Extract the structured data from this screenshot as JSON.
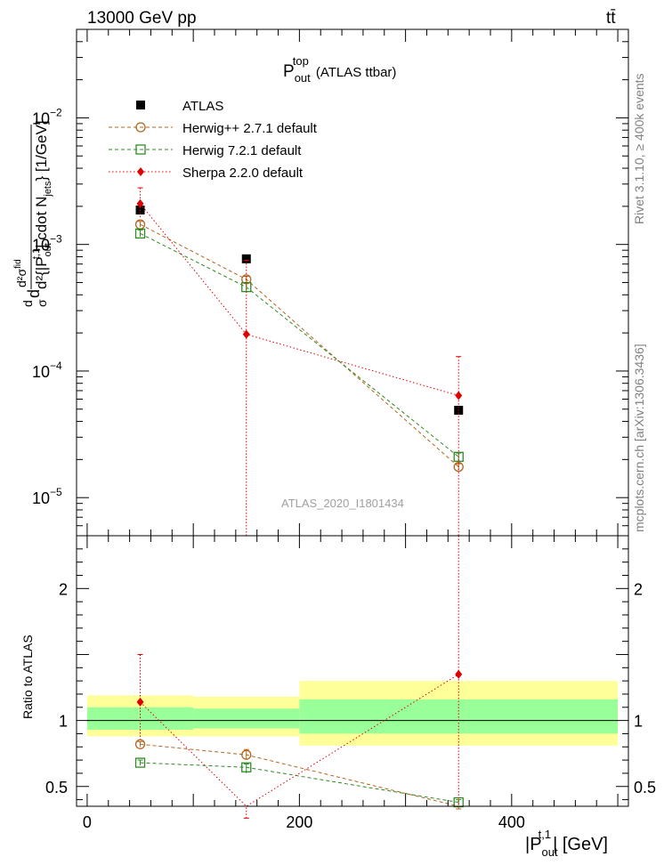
{
  "header": {
    "left": "13000 GeV pp",
    "right": "tt̄"
  },
  "side_labels": {
    "rivet": "Rivet 3.1.10, ≥ 400k events",
    "mcplots": "mcplots.cern.ch [arXiv:1306.3436]"
  },
  "plot_title": {
    "main": "P",
    "sup": "top",
    "sub": "out",
    "suffix": "(ATLAS ttbar)"
  },
  "watermark": "ATLAS_2020_I1801434",
  "ylabel_top": {
    "frac_num": "d",
    "frac_den": "σ",
    "rest": "d",
    "big_num": "d²σ",
    "big_num_sup": "fid",
    "bottom_main": "d²{|P",
    "bottom_sup": "t,1",
    "bottom_sub": "out",
    "bottom_rest": "| cdot N",
    "bottom_sub2": "jets",
    "bottom_close": "} [1/GeV]"
  },
  "ylabel_bottom": "Ratio to ATLAS",
  "xlabel": {
    "main": "|P",
    "sup": "t,1",
    "sub": "out",
    "rest": "| [GeV]"
  },
  "colors": {
    "atlas": "#000000",
    "herwigpp": "#b5651d",
    "herwig7": "#2e8b22",
    "sherpa": "#e00000",
    "band_inner": "#99ff99",
    "band_outer": "#ffff99"
  },
  "chart_data": [
    {
      "type": "scatter",
      "panel": "main",
      "log_y": true,
      "xlim": [
        -10,
        510
      ],
      "ylim": [
        5e-06,
        0.05
      ],
      "yticks": [
        {
          "value": 0.01,
          "base": "10",
          "exp": "−2"
        },
        {
          "value": 0.001,
          "base": "10",
          "exp": "−3"
        },
        {
          "value": 0.0001,
          "base": "10",
          "exp": "−4"
        },
        {
          "value": 1e-05,
          "base": "10",
          "exp": "−5"
        }
      ],
      "x": [
        50,
        150,
        350
      ],
      "x_bins": [
        [
          0,
          100
        ],
        [
          100,
          200
        ],
        [
          200,
          500
        ]
      ],
      "series": [
        {
          "name": "ATLAS",
          "key": "atlas",
          "marker": "square",
          "values": [
            0.00187,
            0.00077,
            4.9e-05
          ]
        },
        {
          "name": "Herwig++ 2.7.1 default",
          "key": "herwigpp",
          "marker": "circle",
          "values": [
            0.00144,
            0.00053,
            1.75e-05
          ],
          "err_hi": [
            0.00152,
            0.00056,
            1.85e-05
          ],
          "err_lo": [
            0.00137,
            0.0005,
            1.65e-05
          ]
        },
        {
          "name": "Herwig 7.2.1 default",
          "key": "herwig7",
          "marker": "open-square",
          "values": [
            0.00122,
            0.00046,
            2.1e-05
          ],
          "err_hi": [
            0.0013,
            0.0005,
            2.25e-05
          ],
          "err_lo": [
            0.00115,
            0.00042,
            1.95e-05
          ]
        },
        {
          "name": "Sherpa 2.2.0 default",
          "key": "sherpa",
          "marker": "diamond",
          "values": [
            0.0021,
            0.000195,
            6.4e-05
          ],
          "err_hi": [
            0.0028,
            0.00075,
            0.00013
          ],
          "err_lo": [
            0.0016,
            1e-07,
            1e-07
          ]
        }
      ]
    },
    {
      "type": "scatter",
      "panel": "ratio",
      "xlim": [
        -10,
        510
      ],
      "ylim": [
        0.35,
        2.4
      ],
      "yticks": [
        0.5,
        1,
        2
      ],
      "xticks": [
        0,
        200,
        400
      ],
      "band_inner": [
        [
          0.93,
          1.1
        ],
        [
          0.94,
          1.09
        ],
        [
          0.9,
          1.16
        ]
      ],
      "band_outer": [
        [
          0.88,
          1.19
        ],
        [
          0.88,
          1.18
        ],
        [
          0.81,
          1.3
        ]
      ],
      "series": [
        {
          "name": "Herwig++ 2.7.1 default",
          "key": "herwigpp",
          "marker": "circle",
          "values": [
            0.82,
            0.74,
            0.31
          ],
          "err_hi": [
            0.84,
            0.78,
            0.33
          ],
          "err_lo": [
            0.8,
            0.7,
            0.29
          ]
        },
        {
          "name": "Herwig 7.2.1 default",
          "key": "herwig7",
          "marker": "open-square",
          "values": [
            0.68,
            0.645,
            0.38
          ],
          "err_hi": [
            0.7,
            0.67,
            0.4
          ],
          "err_lo": [
            0.66,
            0.6,
            0.36
          ]
        },
        {
          "name": "Sherpa 2.2.0 default",
          "key": "sherpa",
          "marker": "diamond",
          "values": [
            1.14,
            0.25,
            1.35
          ],
          "err_hi": [
            1.5,
            0.26,
            2.6
          ],
          "err_lo": [
            0.86,
            0.24,
            0.1
          ]
        }
      ]
    }
  ]
}
